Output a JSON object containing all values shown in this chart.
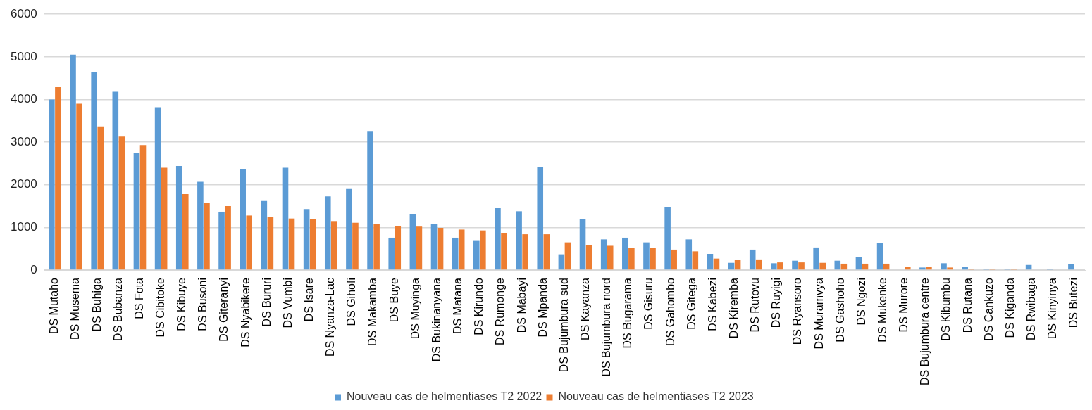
{
  "chart_data": {
    "type": "bar",
    "categories": [
      "DS Mutaho",
      "DS Musema",
      "DS Buhiga",
      "DS Bubanza",
      "DS Fota",
      "DS Cibitoke",
      "DS Kibuye",
      "DS Busoni",
      "DS Giteranyi",
      "DS Nyabikere",
      "DS Bururi",
      "DS Vumbi",
      "DS Isare",
      "DS Nyanza-Lac",
      "DS Gihofi",
      "DS Makamba",
      "DS Buye",
      "DS Muyinga",
      "DS Bukinanyana",
      "DS Matana",
      "DS Kirundo",
      "DS Rumonge",
      "DS Mabayi",
      "DS Mpanda",
      "DS Bujumbura sud",
      "DS Kayanza",
      "DS Bujumbura nord",
      "DS Bugarama",
      "DS Gisuru",
      "DS Gahombo",
      "DS Gitega",
      "DS Kabezi",
      "DS Kiremba",
      "DS Rutovu",
      "DS Ruyigi",
      "DS Ryansoro",
      "DS Muramvya",
      "DS Gashoho",
      "DS Ngozi",
      "DS Mukenke",
      "DS Murore",
      "DS Bujumbura centre",
      "DS Kibumbu",
      "DS Rutana",
      "DS Cankuzo",
      "DS Kiganda",
      "DS Rwibaga",
      "DS Kinyinya",
      "DS Butezi"
    ],
    "series": [
      {
        "name": "Nouveau cas de helmentiases T2 2022",
        "color": "#5b9bd5",
        "values": [
          4000,
          5050,
          4650,
          4180,
          2740,
          3820,
          2440,
          2070,
          1370,
          2360,
          1620,
          2400,
          1430,
          1730,
          1900,
          3260,
          760,
          1320,
          1080,
          760,
          700,
          1450,
          1380,
          2420,
          370,
          1190,
          720,
          760,
          650,
          1470,
          720,
          380,
          170,
          480,
          160,
          220,
          530,
          220,
          310,
          640,
          0,
          60,
          160,
          80,
          30,
          30,
          120,
          30,
          140
        ]
      },
      {
        "name": "Nouveau cas de helmentiases T2 2023",
        "color": "#ed7d31",
        "values": [
          4300,
          3900,
          3370,
          3130,
          2930,
          2400,
          1780,
          1580,
          1500,
          1280,
          1240,
          1210,
          1190,
          1150,
          1110,
          1080,
          1040,
          1020,
          990,
          950,
          930,
          870,
          840,
          840,
          650,
          590,
          570,
          520,
          520,
          480,
          440,
          270,
          240,
          250,
          180,
          180,
          170,
          150,
          150,
          150,
          80,
          80,
          60,
          30,
          30,
          30,
          0,
          0,
          0
        ]
      }
    ],
    "ylim": [
      0,
      6000
    ],
    "yticks": [
      0,
      1000,
      2000,
      3000,
      4000,
      5000,
      6000
    ],
    "grid": "y",
    "legend": "bottom"
  }
}
